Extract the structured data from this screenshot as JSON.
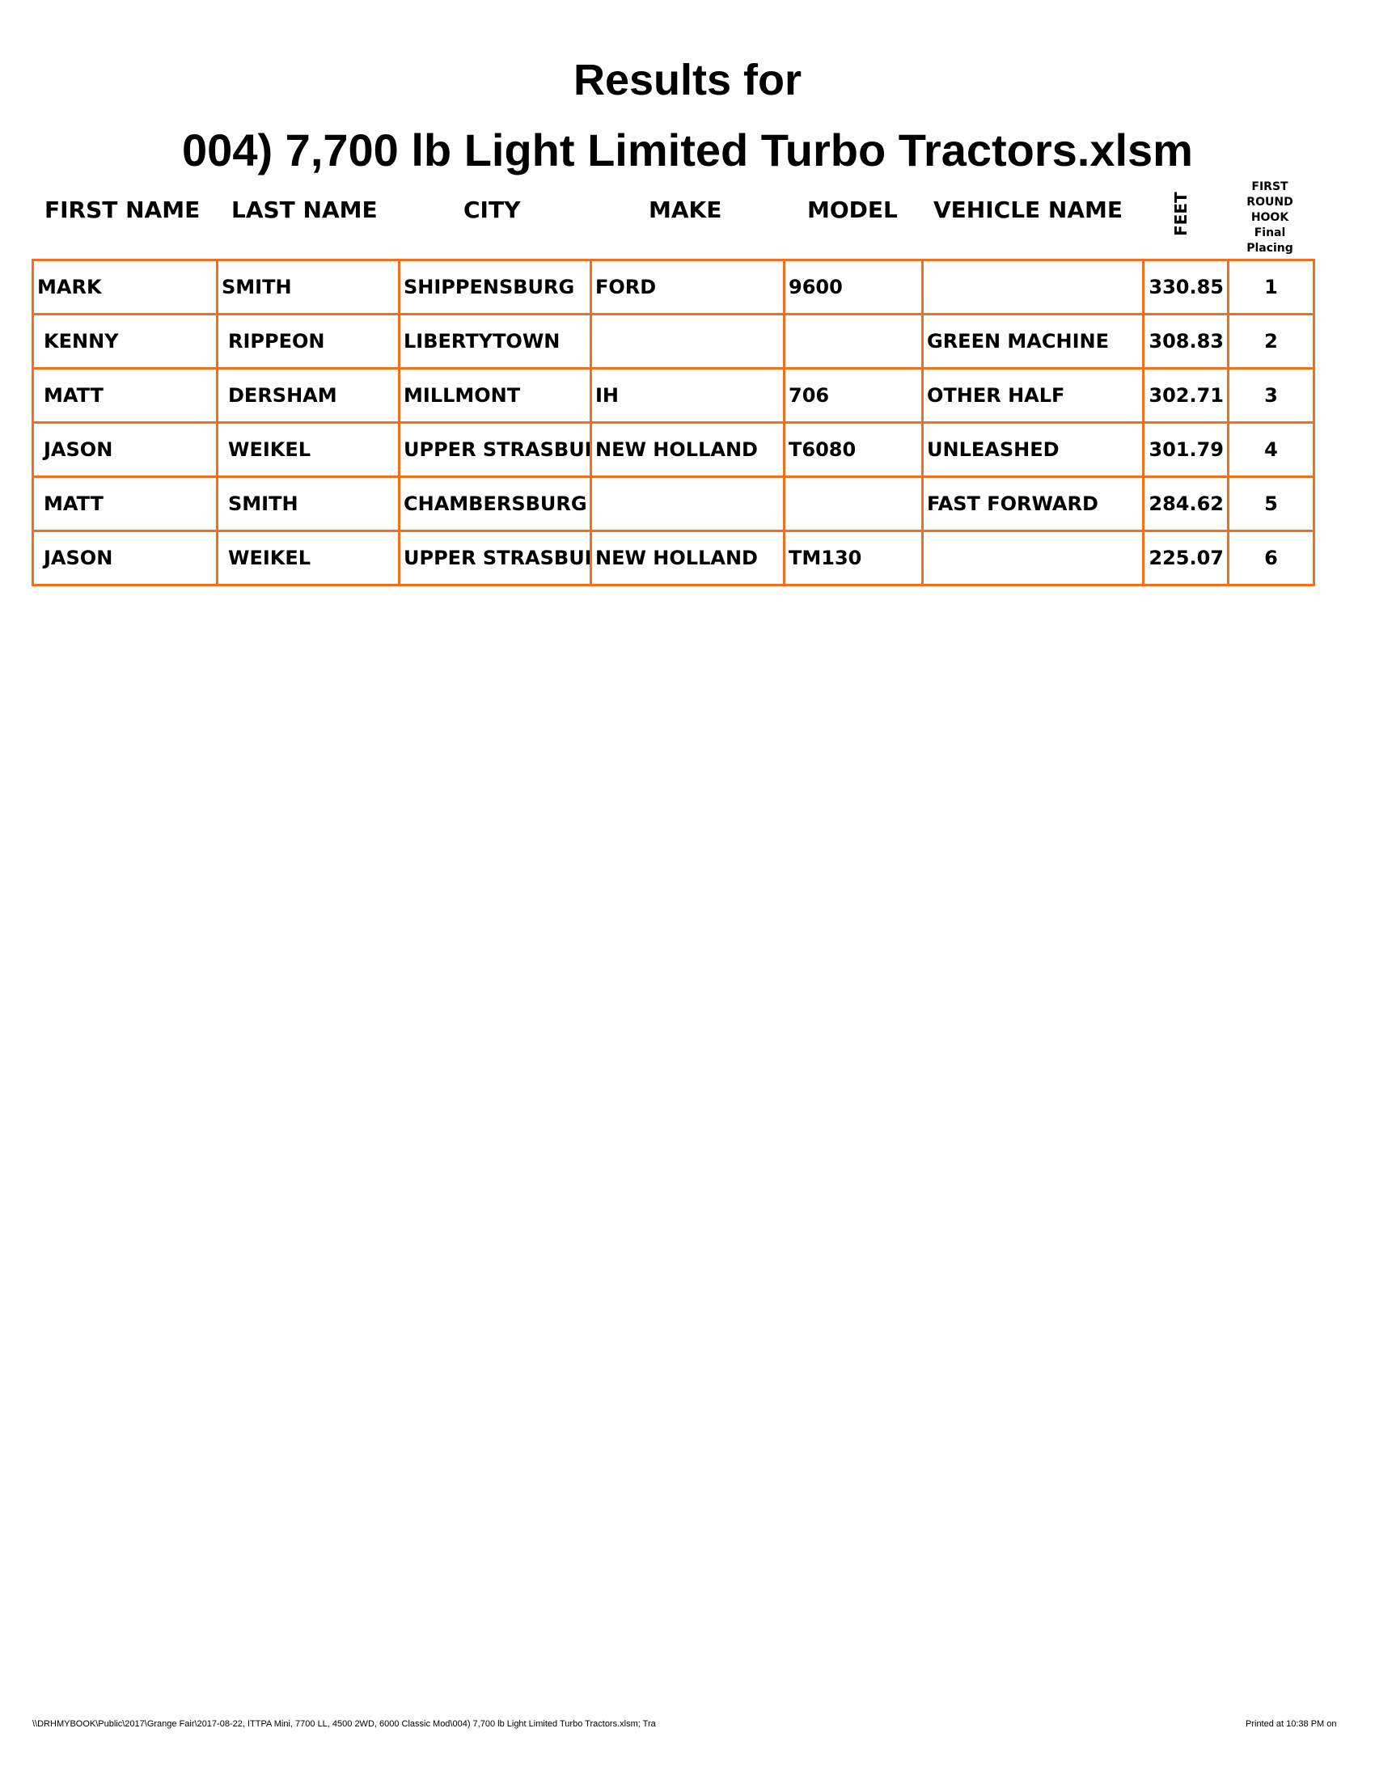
{
  "title_line1": "Results for",
  "title_line2": "004) 7,700 lb Light Limited Turbo Tractors.xlsm",
  "headers": {
    "first_name": "FIRST NAME",
    "last_name": "LAST NAME",
    "city": "CITY",
    "make": "MAKE",
    "model": "MODEL",
    "vehicle_name": "VEHICLE NAME",
    "feet": "FEET",
    "placing": [
      "FIRST",
      "ROUND",
      "HOOK",
      "Final",
      "Placing"
    ]
  },
  "rows": [
    [
      "MARK",
      "SMITH",
      "SHIPPENSBURG",
      "FORD",
      "9600",
      "",
      "330.85",
      "1"
    ],
    [
      "KENNY",
      "RIPPEON",
      "LIBERTYTOWN",
      "",
      "",
      "GREEN MACHINE",
      "308.83",
      "2"
    ],
    [
      "MATT",
      "DERSHAM",
      "MILLMONT",
      "IH",
      "706",
      "OTHER HALF",
      "302.71",
      "3"
    ],
    [
      "JASON",
      "WEIKEL",
      "UPPER STRASBURG",
      "NEW HOLLAND",
      "T6080",
      "UNLEASHED",
      "301.79",
      "4"
    ],
    [
      "MATT",
      "SMITH",
      "CHAMBERSBURG",
      "",
      "",
      "FAST FORWARD",
      "284.62",
      "5"
    ],
    [
      "JASON",
      "WEIKEL",
      "UPPER STRASBURG",
      "NEW HOLLAND",
      "TM130",
      "",
      "225.07",
      "6"
    ]
  ],
  "border_color": "#f07020",
  "footer": {
    "path": "\\\\DRHMYBOOK\\Public\\2017\\Grange Fair\\2017-08-22, ITTPA Mini, 7700 LL, 4500 2WD, 6000 Classic Mod\\004) 7,700 lb Light Limited Turbo Tractors.xlsm;  Tra",
    "printed": "Printed at 10:38 PM on"
  }
}
